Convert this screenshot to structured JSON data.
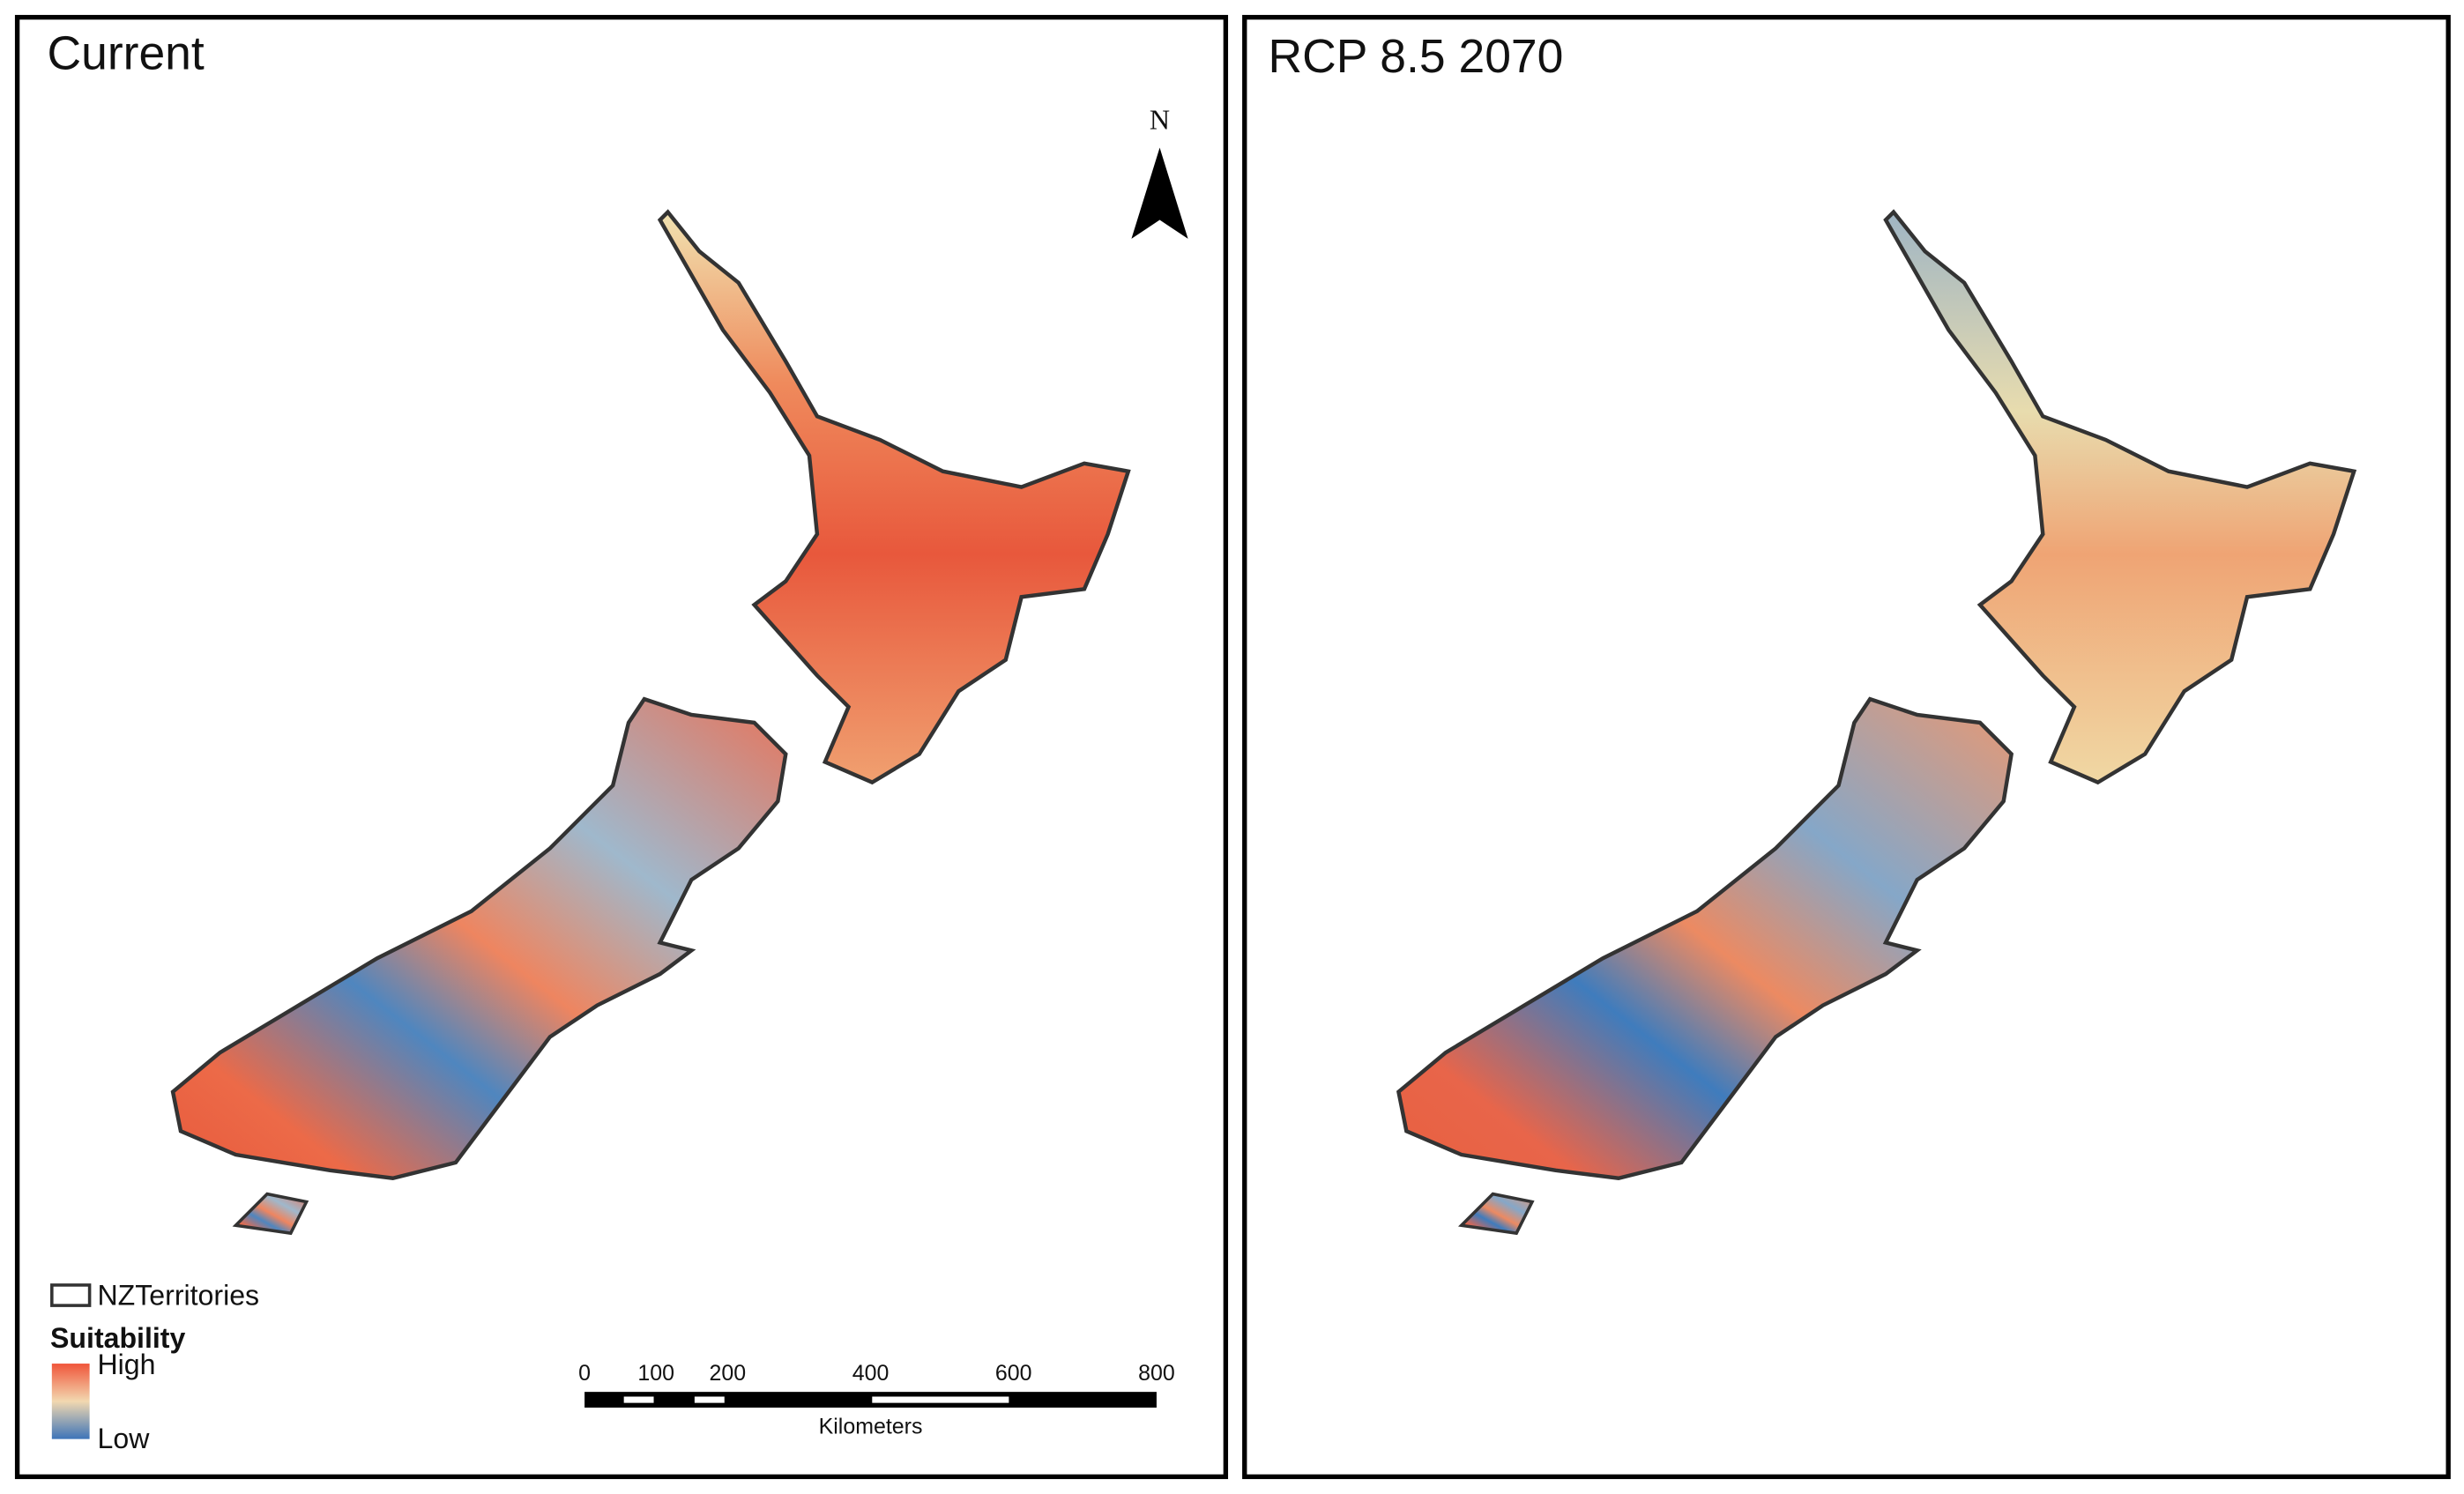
{
  "panels": [
    {
      "title": "Current"
    },
    {
      "title": "RCP 8.5 2070"
    }
  ],
  "north_arrow": "N",
  "legend": {
    "layer": "NZTerritories",
    "title": "Suitability",
    "high": "High",
    "low": "Low"
  },
  "scale_bar": {
    "ticks": [
      0,
      100,
      200,
      400,
      600,
      800
    ],
    "unit": "Kilometers"
  }
}
